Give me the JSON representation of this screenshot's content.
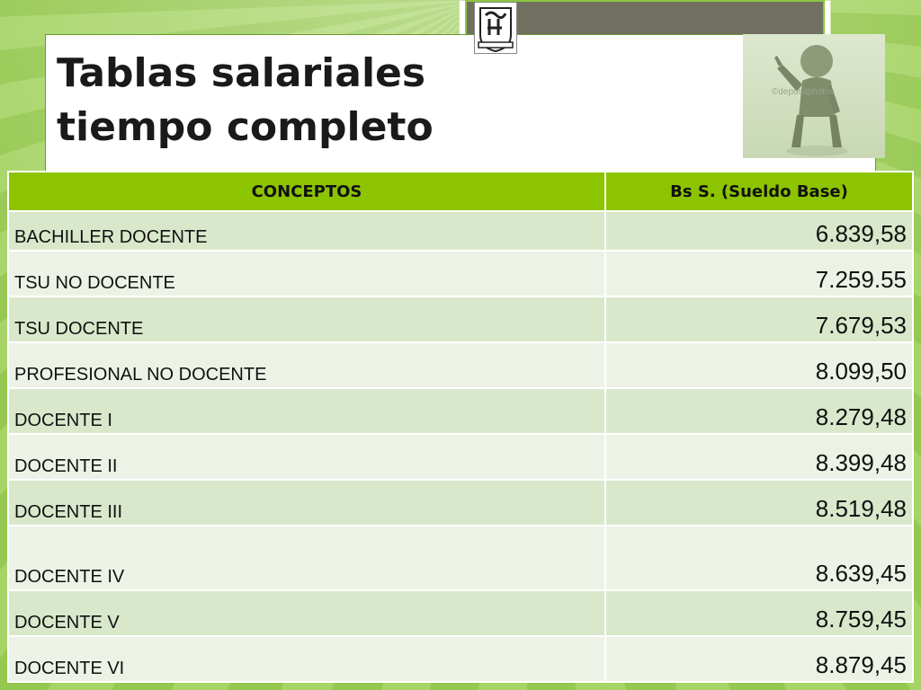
{
  "slide": {
    "title_line1": "Tablas salariales",
    "title_line2": "tiempo completo",
    "photo_watermark": "©depositphotos",
    "accent_color": "#8dc400"
  },
  "table": {
    "headers": [
      "CONCEPTOS",
      "Bs S. (Sueldo Base)"
    ],
    "rows": [
      {
        "concept": "BACHILLER DOCENTE",
        "amount": "6.839,58"
      },
      {
        "concept": "TSU NO DOCENTE",
        "amount": "7.259.55"
      },
      {
        "concept": "TSU DOCENTE",
        "amount": "7.679,53"
      },
      {
        "concept": "PROFESIONAL NO DOCENTE",
        "amount": "8.099,50"
      },
      {
        "concept": "DOCENTE I",
        "amount": "8.279,48"
      },
      {
        "concept": "DOCENTE II",
        "amount": "8.399,48"
      },
      {
        "concept": "DOCENTE III",
        "amount": "8.519,48"
      },
      {
        "concept": "DOCENTE IV",
        "amount": "8.639,45"
      },
      {
        "concept": "DOCENTE V",
        "amount": "8.759,45"
      },
      {
        "concept": "DOCENTE VI",
        "amount": "8.879,45"
      }
    ]
  }
}
